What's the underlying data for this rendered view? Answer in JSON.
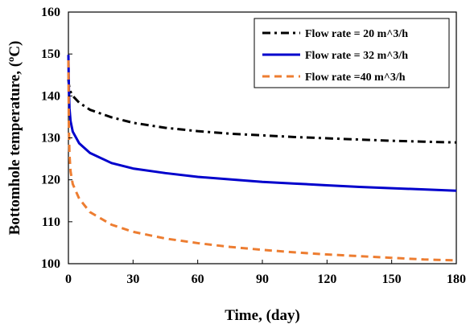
{
  "chart_data": {
    "type": "line",
    "xlabel": "Time, (day)",
    "ylabel": "Bottomhole temperature, (ºC)",
    "xlim": [
      0,
      180
    ],
    "ylim": [
      100,
      160
    ],
    "xticks": [
      0,
      30,
      60,
      90,
      120,
      150,
      180
    ],
    "yticks": [
      100,
      110,
      120,
      130,
      140,
      150,
      160
    ],
    "grid": false,
    "legend_position": "top-right",
    "series": [
      {
        "name": "Flow rate = 20 m^3/h",
        "style": "dash-dot",
        "color": "#000000",
        "x": [
          0,
          0.2,
          0.5,
          1,
          2,
          5,
          10,
          20,
          30,
          45,
          60,
          75,
          90,
          105,
          120,
          135,
          150,
          165,
          180
        ],
        "y": [
          144.0,
          142.8,
          141.8,
          141.0,
          140.0,
          138.4,
          136.7,
          134.9,
          133.6,
          132.4,
          131.6,
          131.0,
          130.6,
          130.2,
          129.9,
          129.6,
          129.3,
          129.1,
          128.9
        ]
      },
      {
        "name": "Flow rate = 32 m^3/h",
        "style": "solid",
        "color": "#0000cc",
        "x": [
          0,
          0.2,
          0.5,
          1,
          2,
          5,
          10,
          20,
          30,
          45,
          60,
          75,
          90,
          105,
          120,
          135,
          150,
          165,
          180
        ],
        "y": [
          149.8,
          142.0,
          137.0,
          134.0,
          131.5,
          128.7,
          126.4,
          124.0,
          122.7,
          121.6,
          120.7,
          120.1,
          119.5,
          119.1,
          118.7,
          118.3,
          118.0,
          117.7,
          117.4
        ]
      },
      {
        "name": "Flow rate =40 m^3/h",
        "style": "dashed",
        "color": "#ed7d31",
        "x": [
          0,
          0.2,
          0.5,
          1,
          2,
          5,
          10,
          20,
          30,
          45,
          60,
          75,
          90,
          105,
          120,
          135,
          150,
          165,
          180
        ],
        "y": [
          148.5,
          133.0,
          126.0,
          122.0,
          119.0,
          115.5,
          112.3,
          109.3,
          107.6,
          106.0,
          104.9,
          104.0,
          103.3,
          102.7,
          102.2,
          101.8,
          101.4,
          101.0,
          100.8
        ]
      }
    ]
  }
}
